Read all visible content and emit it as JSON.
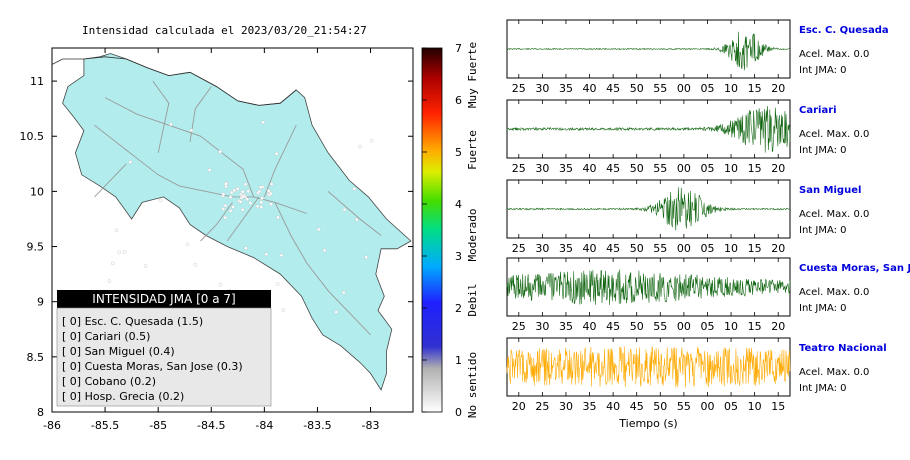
{
  "map": {
    "title": "Intensidad calculada el 2023/03/20_21:54:27",
    "lon_ticks": [
      "-86",
      "-85.5",
      "-85",
      "-84.5",
      "-84",
      "-83.5",
      "-83"
    ],
    "lat_ticks": [
      "11",
      "10.5",
      "10",
      "9.5",
      "9",
      "8.5",
      "8"
    ],
    "xlim": [
      -86,
      -82.6
    ],
    "ylim": [
      8,
      11.3
    ],
    "legend_title": "INTENSIDAD JMA [0 a 7]",
    "legend_entries": [
      "[ 0]  Esc. C. Quesada (1.5)",
      "[ 0]  Cariari (0.5)",
      "[ 0]  San Miguel (0.4)",
      "[ 0]  Cuesta Moras, San Jose (0.3)",
      "[ 0]  Cobano (0.2)",
      "[ 0]  Hosp. Grecia (0.2)"
    ],
    "land_color": "#b2ecec"
  },
  "colorbar": {
    "ticks": [
      "7",
      "6",
      "5",
      "4",
      "3",
      "2",
      "1",
      "0"
    ],
    "range": [
      0,
      7
    ],
    "labels": [
      "Muy Fuerte",
      "Fuerte",
      "Moderado",
      "Debil",
      "No sentido"
    ]
  },
  "chart_data": {
    "type": "line",
    "xlabel": "Tiempo (s)",
    "panels": [
      {
        "name": "Esc. C. Quesada",
        "accel_label": "Acel. Max. 0.0",
        "jma_label": "Int JMA: 0",
        "color": "#116611",
        "ticks": [
          "25",
          "30",
          "35",
          "40",
          "45",
          "50",
          "55",
          "00",
          "05",
          "10",
          "15",
          "20"
        ],
        "burst_center": 0.84,
        "burst_width": 0.06,
        "base_noise": 0.02,
        "burst_amp": 0.8
      },
      {
        "name": "Cariari",
        "accel_label": "Acel. Max. 0.0",
        "jma_label": "Int JMA: 0",
        "color": "#116611",
        "ticks": [
          "25",
          "30",
          "35",
          "40",
          "45",
          "50",
          "55",
          "00",
          "05",
          "10",
          "15",
          "20"
        ],
        "burst_center": 0.92,
        "burst_width": 0.12,
        "base_noise": 0.05,
        "burst_amp": 0.9
      },
      {
        "name": "San Miguel",
        "accel_label": "Acel. Max. 0.0",
        "jma_label": "Int JMA: 0",
        "color": "#116611",
        "ticks": [
          "25",
          "30",
          "35",
          "40",
          "45",
          "50",
          "55",
          "00",
          "05",
          "10",
          "15",
          "20"
        ],
        "burst_center": 0.62,
        "burst_width": 0.08,
        "base_noise": 0.03,
        "burst_amp": 0.9
      },
      {
        "name": "Cuesta Moras, San Jose",
        "accel_label": "Acel. Max. 0.0",
        "jma_label": "Int JMA: 0",
        "color": "#116611",
        "ticks": [
          "25",
          "30",
          "35",
          "40",
          "45",
          "50",
          "55",
          "00",
          "05",
          "10",
          "15",
          "20"
        ],
        "burst_center": 0.35,
        "burst_width": 0.4,
        "base_noise": 0.25,
        "burst_amp": 0.45
      },
      {
        "name": "Teatro Nacional",
        "accel_label": "Acel. Max. 0.0",
        "jma_label": "Int JMA: 0",
        "color": "#ffaa00",
        "ticks": [
          "20",
          "25",
          "30",
          "35",
          "40",
          "45",
          "50",
          "55",
          "00",
          "05",
          "10",
          "15"
        ],
        "burst_center": 0.5,
        "burst_width": 0.8,
        "base_noise": 0.45,
        "burst_amp": 0.35
      }
    ]
  }
}
